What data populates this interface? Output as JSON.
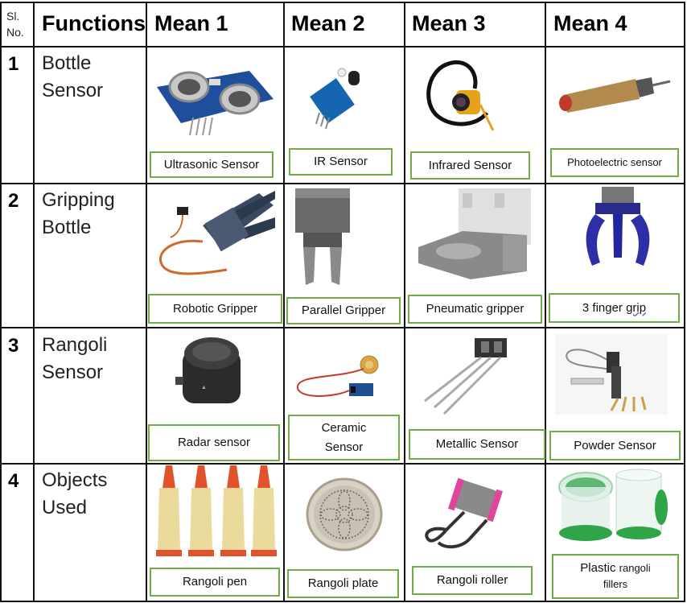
{
  "headers": {
    "sl": "Sl. No.",
    "functions": "Functions",
    "mean1": "Mean 1",
    "mean2": "Mean 2",
    "mean3": "Mean 3",
    "mean4": "Mean 4"
  },
  "rows": [
    {
      "no": "1",
      "function": "Bottle Sensor",
      "means": [
        "Ultrasonic Sensor",
        "IR Sensor",
        "Infrared Sensor",
        "Photoelectric sensor"
      ]
    },
    {
      "no": "2",
      "function": "Gripping Bottle",
      "means": [
        "Robotic Gripper",
        "Parallel Gripper",
        "Pneumatic gripper",
        "3 finger grip"
      ]
    },
    {
      "no": "3",
      "function": "Rangoli Sensor",
      "means": [
        "Radar sensor",
        "Ceramic Sensor",
        "Metallic Sensor",
        "Powder Sensor"
      ]
    },
    {
      "no": "4",
      "function": "Objects Used",
      "means": [
        "Rangoli pen",
        "Rangoli plate",
        "Rangoli roller",
        "Plastic rangoli fillers"
      ]
    }
  ],
  "text": {
    "three_finger_a": "3 finger ",
    "three_finger_b": "grip",
    "ceramic_a": "Ceramic",
    "ceramic_b": "Sensor",
    "plastic_a": "Plastic ",
    "plastic_b": "rangoli",
    "plastic_c": "fillers"
  },
  "colors": {
    "label_border": "#70ad47",
    "grid": "#111111"
  }
}
